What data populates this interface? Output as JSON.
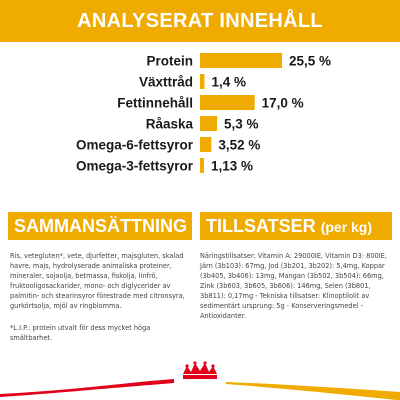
{
  "header": {
    "title": "ANALYSERAT INNEHÅLL"
  },
  "chart_data": {
    "type": "bar",
    "orientation": "horizontal",
    "title": "ANALYSERAT INNEHÅLL",
    "categories": [
      "Protein",
      "Växttråd",
      "Fettinnehåll",
      "Råaska",
      "Omega-6-fettsyror",
      "Omega-3-fettsyror"
    ],
    "values": [
      25.5,
      1.4,
      17.0,
      5.3,
      3.52,
      1.13
    ],
    "value_labels": [
      "25,5 %",
      "1,4 %",
      "17,0 %",
      "5,3 %",
      "3,52 %",
      "1,13 %"
    ],
    "xlim": [
      0,
      25.5
    ],
    "grid": false,
    "bar_color": "#f0ab00"
  },
  "composition": {
    "title": "SAMMANSÄTTNING",
    "text": "Ris, vetegluten*, vete, djurfetter, majsgluten, skalad havre, majs, hydrolyserade animaliska proteiner, mineraler, sojaolja, betmassa, fiskolja, linfrö, fruktooligosackarider, mono- och diglycerider av palmitin- och stearinsyror förestrade med citronsyra, gurkörtsolja, mjöl av ringblomma.",
    "note": "*L.I.P.: protein utvalt för dess mycket höga smältbarhet."
  },
  "additives": {
    "title": "TILLSATSER",
    "unit": "(per kg)",
    "text": "Näringstillsatser: Vitamin A: 29000IE, Vitamin D3: 800IE, Järn (3b103): 67mg, Jod (3b201, 3b202): 5,4mg, Koppar (3b405, 3b406): 13mg, Mangan (3b502, 3b504): 66mg, Zink (3b603, 3b605, 3b606): 146mg, Selen (3b801, 3b811): 0,17mg - Tekniska tillsatser: Klinoptilolit av sedimentärt ursprung: 5g - Konserveringsmedel - Antioxidanter."
  },
  "colors": {
    "accent": "#f0ab00",
    "brand_red": "#e2001a"
  },
  "footer": {
    "logo": "royal-canin-crown-logo"
  }
}
